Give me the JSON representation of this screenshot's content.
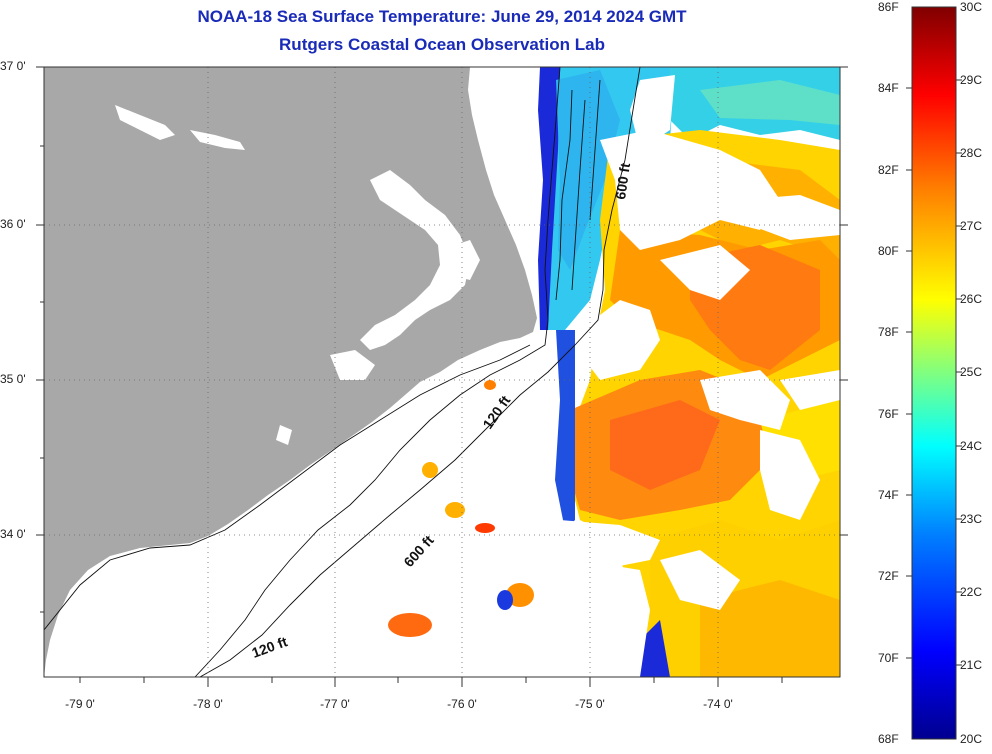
{
  "title": "NOAA-18 Sea Surface Temperature:  June 29, 2014 2024 GMT",
  "subtitle": "Rutgers Coastal Ocean Observation Lab",
  "lat_labels": [
    "37 0'",
    "36 0'",
    "35 0'",
    "34 0'"
  ],
  "lon_labels": [
    "-79 0'",
    "-78 0'",
    "-77 0'",
    "-76 0'",
    "-75 0'",
    "-74 0'"
  ],
  "colorbar": {
    "fahrenheit_labels": [
      "86F",
      "84F",
      "82F",
      "80F",
      "78F",
      "76F",
      "74F",
      "72F",
      "70F",
      "68F"
    ],
    "celsius_labels": [
      "30C",
      "29C",
      "28C",
      "27C",
      "26C",
      "25C",
      "24C",
      "23C",
      "22C",
      "21C",
      "20C"
    ],
    "range_c": [
      20,
      30
    ],
    "colors": [
      "#00008f",
      "#0000ff",
      "#0080ff",
      "#00ffff",
      "#80ff80",
      "#ffff00",
      "#ff8000",
      "#ff0000",
      "#800000"
    ]
  },
  "contour_labels": [
    "600 ft",
    "120 ft",
    "600 ft",
    "120 ft"
  ],
  "colors": {
    "land": "#a8a8a8",
    "title": "#1a2bb8",
    "cloud": "#ffffff"
  }
}
